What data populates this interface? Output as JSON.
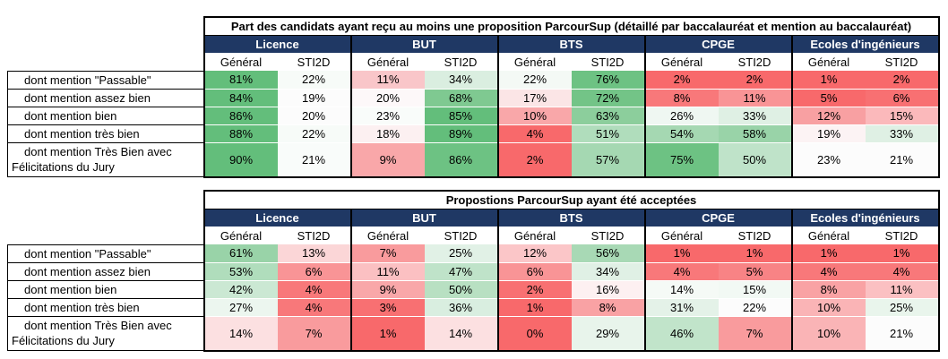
{
  "tables": [
    {
      "title": "Part des candidats ayant reçu au moins une proposition ParcourSup (détaillé par baccalauréat et mention au baccalauréat)",
      "groups": [
        "Licence",
        "BUT",
        "BTS",
        "CPGE",
        "Ecoles d'ingénieurs"
      ],
      "sub_headers": [
        "Général",
        "STI2D"
      ],
      "rows": [
        {
          "label": "dont mention \"Passable\"",
          "label2": "",
          "values": [
            "81%",
            "22%",
            "11%",
            "34%",
            "22%",
            "76%",
            "2%",
            "2%",
            "1%",
            "2%"
          ],
          "colors": [
            "#63be7b",
            "#f7fbf8",
            "#f9c6c9",
            "#daeee0",
            "#f4f9f5",
            "#6dc283",
            "#f8696b",
            "#f8696b",
            "#f8696b",
            "#f8696b"
          ]
        },
        {
          "label": "dont mention assez bien",
          "label2": "",
          "values": [
            "84%",
            "19%",
            "20%",
            "68%",
            "17%",
            "72%",
            "8%",
            "11%",
            "5%",
            "6%"
          ],
          "colors": [
            "#63be7b",
            "#fcfcfc",
            "#fdf8f9",
            "#7fc991",
            "#fbe5e6",
            "#73c487",
            "#f8787a",
            "#f99496",
            "#f8696b",
            "#f87072"
          ]
        },
        {
          "label": "dont mention bien",
          "label2": "",
          "values": [
            "86%",
            "20%",
            "23%",
            "85%",
            "10%",
            "63%",
            "26%",
            "33%",
            "12%",
            "15%"
          ],
          "colors": [
            "#63be7b",
            "#fcfcfc",
            "#f9fcfa",
            "#63be7b",
            "#f9a7a9",
            "#8cce9c",
            "#eff7f2",
            "#dff0e4",
            "#f8a0a2",
            "#fbb9bb"
          ]
        },
        {
          "label": "dont mention très bien",
          "label2": "",
          "values": [
            "88%",
            "22%",
            "18%",
            "89%",
            "4%",
            "51%",
            "54%",
            "58%",
            "19%",
            "33%"
          ],
          "colors": [
            "#63be7b",
            "#f7fbf8",
            "#fcf0f1",
            "#63be7b",
            "#f8696b",
            "#b0ddbc",
            "#a5d8b2",
            "#99d3a8",
            "#fcf3f4",
            "#dff0e4"
          ]
        }
      ],
      "last_row": {
        "label": "dont mention Très Bien avec",
        "label2": "Félicitations du Jury",
        "values": [
          "90%",
          "21%",
          "9%",
          "86%",
          "2%",
          "57%",
          "75%",
          "50%",
          "23%",
          "21%"
        ],
        "colors": [
          "#63be7b",
          "#f9fcfa",
          "#f9a7a9",
          "#6dc283",
          "#f8696b",
          "#a5d8b2",
          "#6dc283",
          "#bfe3c9",
          "#fcfcfc",
          "#fcfcfc"
        ]
      }
    },
    {
      "title": "Propostions ParcourSup ayant été acceptées",
      "groups": [
        "Licence",
        "BUT",
        "BTS",
        "CPGE",
        "Ecoles d'ingénieurs"
      ],
      "sub_headers": [
        "Général",
        "STI2D"
      ],
      "rows": [
        {
          "label": "dont mention \"Passable\"",
          "label2": "",
          "values": [
            "61%",
            "13%",
            "7%",
            "25%",
            "12%",
            "56%",
            "1%",
            "1%",
            "1%",
            "1%"
          ],
          "colors": [
            "#99d3a8",
            "#fbd6d7",
            "#f99b9d",
            "#e1f1e6",
            "#fbc6c8",
            "#a8d9b5",
            "#f8696b",
            "#f8696b",
            "#f8696b",
            "#f8696b"
          ]
        },
        {
          "label": "dont mention assez bien",
          "label2": "",
          "values": [
            "53%",
            "6%",
            "11%",
            "47%",
            "6%",
            "34%",
            "4%",
            "5%",
            "4%",
            "4%"
          ],
          "colors": [
            "#b0ddbc",
            "#f99496",
            "#fbc0c2",
            "#bfe3c9",
            "#f99496",
            "#e0f0e5",
            "#f8787a",
            "#f88385",
            "#f8787a",
            "#f8787a"
          ]
        },
        {
          "label": "dont mention bien",
          "label2": "",
          "values": [
            "42%",
            "4%",
            "9%",
            "50%",
            "2%",
            "16%",
            "14%",
            "15%",
            "8%",
            "11%"
          ],
          "colors": [
            "#cbe8d3",
            "#f8787a",
            "#f9a7a9",
            "#b8e0c2",
            "#f87072",
            "#fdf0f1",
            "#f5faf6",
            "#f2f9f4",
            "#f9a2a4",
            "#fbc0c2"
          ]
        },
        {
          "label": "dont mention très bien",
          "label2": "",
          "values": [
            "27%",
            "4%",
            "3%",
            "36%",
            "1%",
            "8%",
            "31%",
            "22%",
            "10%",
            "25%"
          ],
          "colors": [
            "#ecf6ef",
            "#f8787a",
            "#f87072",
            "#d9eee0",
            "#f8696b",
            "#f9a2a4",
            "#e4f2e8",
            "#fcfcfc",
            "#fab4b6",
            "#e9f5ec"
          ]
        }
      ],
      "last_row": {
        "label": "dont mention Très Bien avec",
        "label2": "Félicitations du Jury",
        "values": [
          "14%",
          "7%",
          "1%",
          "14%",
          "0%",
          "29%",
          "46%",
          "7%",
          "10%",
          "21%"
        ],
        "colors": [
          "#fce0e1",
          "#f99b9d",
          "#f8696b",
          "#fce0e1",
          "#f8696b",
          "#e8f4eb",
          "#c1e4ca",
          "#f99b9d",
          "#fab4b6",
          "#fcfcfc"
        ]
      }
    }
  ]
}
